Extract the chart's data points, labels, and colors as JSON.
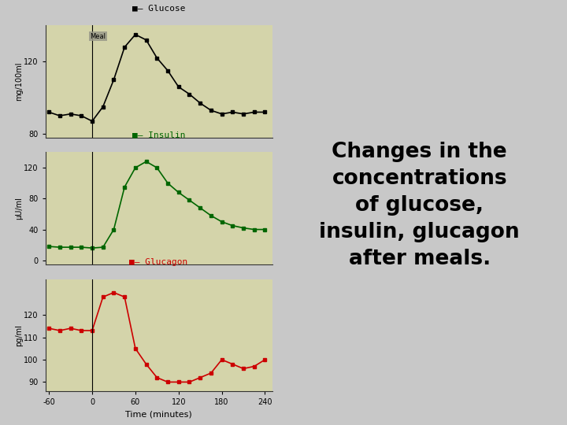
{
  "background_color": "#c8c8c8",
  "plot_bg_color": "#d4d4aa",
  "fig_bg_color": "#c8c8c8",
  "glucose": {
    "x": [
      -60,
      -45,
      -30,
      -15,
      0,
      15,
      30,
      45,
      60,
      75,
      90,
      105,
      120,
      135,
      150,
      165,
      180,
      195,
      210,
      225,
      240
    ],
    "y": [
      92,
      90,
      91,
      90,
      87,
      95,
      110,
      128,
      135,
      132,
      122,
      115,
      106,
      102,
      97,
      93,
      91,
      92,
      91,
      92,
      92
    ],
    "color": "#000000",
    "label": "Glucose",
    "ylabel": "mg/100ml",
    "ylim": [
      78,
      140
    ],
    "yticks": [
      80,
      120
    ]
  },
  "insulin": {
    "x": [
      -60,
      -45,
      -30,
      -15,
      0,
      15,
      30,
      45,
      60,
      75,
      90,
      105,
      120,
      135,
      150,
      165,
      180,
      195,
      210,
      225,
      240
    ],
    "y": [
      18,
      17,
      17,
      17,
      16,
      17,
      40,
      95,
      120,
      128,
      120,
      100,
      88,
      78,
      68,
      58,
      50,
      45,
      42,
      40,
      40
    ],
    "color": "#006600",
    "label": "Insulin",
    "ylabel": "μU/ml",
    "ylim": [
      -5,
      140
    ],
    "yticks": [
      0,
      40,
      80,
      120
    ]
  },
  "glucagon": {
    "x": [
      -60,
      -45,
      -30,
      -15,
      0,
      15,
      30,
      45,
      60,
      75,
      90,
      105,
      120,
      135,
      150,
      165,
      180,
      195,
      210,
      225,
      240
    ],
    "y": [
      114,
      113,
      114,
      113,
      113,
      128,
      130,
      128,
      105,
      98,
      92,
      90,
      90,
      90,
      92,
      94,
      100,
      98,
      96,
      97,
      100
    ],
    "color": "#cc0000",
    "label": "Glucagon",
    "ylabel": "pg/ml",
    "ylim": [
      86,
      136
    ],
    "yticks": [
      90,
      100,
      110,
      120
    ]
  },
  "xticks": [
    -60,
    0,
    60,
    120,
    180,
    240
  ],
  "xlabel": "Time (minutes)",
  "xlim": [
    -65,
    250
  ],
  "meal_label": "Meal",
  "meal_box_color": "#999988",
  "text_title": "Changes in the\nconcentrations\nof glucose,\ninsulin, glucagon\nafter meals.",
  "text_fontsize": 19,
  "text_color": "#000000"
}
